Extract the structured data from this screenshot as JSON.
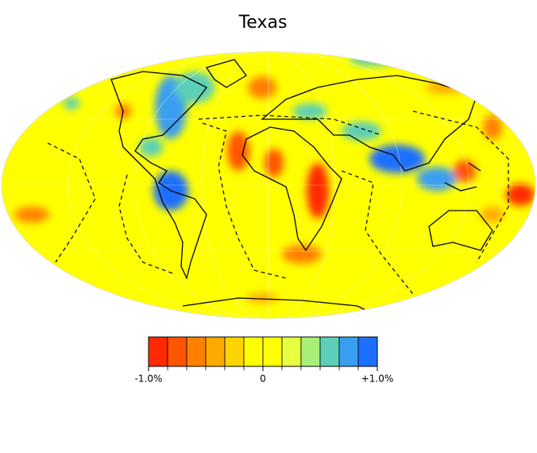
{
  "title": "Texas",
  "colorbar": {
    "range": [
      -1,
      1
    ],
    "colors": [
      "#ff2a00",
      "#ff5500",
      "#ff8000",
      "#ffaa00",
      "#ffd400",
      "#ffff00",
      "#ffff00",
      "#e6ff40",
      "#a8ef78",
      "#5ccfb8",
      "#3a9ef0",
      "#1e6fff"
    ],
    "ticks": [
      {
        "value": -1,
        "label": "-1.0%"
      },
      0,
      {
        "value": 1,
        "label": "+1.0%"
      }
    ]
  }
}
